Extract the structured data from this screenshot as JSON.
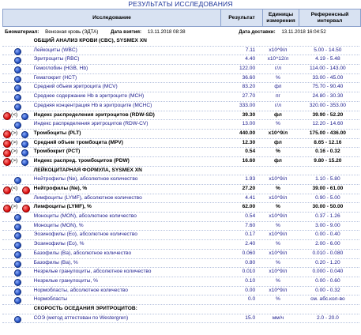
{
  "page_title": "РЕЗУЛЬТАТЫ ИССЛЕДОВАНИЯ",
  "columns": {
    "test": "Исследование",
    "result": "Результат",
    "unit": "Единицы измерения",
    "ref": "Референсный интервал"
  },
  "biomaterial": {
    "label": "Биоматериал:",
    "value": "Венозная кровь (ЭДТА)",
    "taken_label": "Дата взятия:",
    "taken_value": "13.11.2018 08:38",
    "delivered_label": "Дата доставки:",
    "delivered_value": "13.11.2018 16:04:52"
  },
  "rows": [
    {
      "name": "ОБЩИЙ АНАЛИЗ КРОВИ (CBC), SYSMEX XN",
      "value": "",
      "unit": "",
      "ref": "",
      "type": "header",
      "icon": "none",
      "flag": ""
    },
    {
      "name": "Лейкоциты (WBC)",
      "value": "7.11",
      "unit": "x10^9/л",
      "ref": "5.00 - 14.50",
      "type": "normal",
      "icon": "blue",
      "flag": ""
    },
    {
      "name": "Эритроциты (RBC)",
      "value": "4.40",
      "unit": "x10^12/л",
      "ref": "4.19 - 5.48",
      "type": "normal",
      "icon": "blue",
      "flag": ""
    },
    {
      "name": "Гемоглобин (HGB, Hb)",
      "value": "122.00",
      "unit": "г/л",
      "ref": "114.00 - 143.00",
      "type": "normal",
      "icon": "blue",
      "flag": ""
    },
    {
      "name": "Гематокрит (HCT)",
      "value": "36.60",
      "unit": "%",
      "ref": "33.00 - 45.00",
      "type": "normal",
      "icon": "blue",
      "flag": ""
    },
    {
      "name": "Средний объем эритроцита (MCV)",
      "value": "83.20",
      "unit": "фл",
      "ref": "75.70 - 90.40",
      "type": "normal",
      "icon": "blue",
      "flag": ""
    },
    {
      "name": "Среднее содержание Hb в эритроците (MCH)",
      "value": "27.70",
      "unit": "пг",
      "ref": "24.80 - 30.30",
      "type": "normal",
      "icon": "blue",
      "flag": ""
    },
    {
      "name": "Средняя концентрация Hb в эритроците (MCHC)",
      "value": "333.00",
      "unit": "г/л",
      "ref": "320.00 - 353.00",
      "type": "normal",
      "icon": "blue",
      "flag": ""
    },
    {
      "name": "Индекс распределения эритроцитов (RDW-SD)",
      "value": "39.30",
      "unit": "фл",
      "ref": "39.90 - 52.20",
      "type": "bold",
      "icon": "red",
      "flag": "(<)"
    },
    {
      "name": "Индекс распределения эритроцитов (RDW-CV)",
      "value": "13.00",
      "unit": "%",
      "ref": "12.20 - 14.60",
      "type": "normal",
      "icon": "blue",
      "flag": ""
    },
    {
      "name": "Тромбоциты (PLT)",
      "value": "440.00",
      "unit": "x10^9/л",
      "ref": "175.00 - 436.00",
      "type": "bold",
      "icon": "red",
      "flag": "(>)"
    },
    {
      "name": "Средний объем тромбоцита (MPV)",
      "value": "12.30",
      "unit": "фл",
      "ref": "8.65 - 12.16",
      "type": "bold",
      "icon": "red",
      "flag": "(>)"
    },
    {
      "name": "Тромбокрит (PCT)",
      "value": "0.54",
      "unit": "%",
      "ref": "0.16 - 0.32",
      "type": "bold",
      "icon": "red",
      "flag": "(>)"
    },
    {
      "name": "Индекс распред. тромбоцитов (PDW)",
      "value": "16.60",
      "unit": "фл",
      "ref": "9.80 - 15.20",
      "type": "bold",
      "icon": "red",
      "flag": "(>)"
    },
    {
      "name": "ЛЕЙКОЦИТАРНАЯ ФОРМУЛА, SYSMEX XN",
      "value": "",
      "unit": "",
      "ref": "",
      "type": "header",
      "icon": "none",
      "flag": ""
    },
    {
      "name": "Нейтрофилы (Ne), абсолютное количество",
      "value": "1.93",
      "unit": "x10^9/л",
      "ref": "1.10 - 5.80",
      "type": "normal",
      "icon": "blue",
      "flag": ""
    },
    {
      "name": "Нейтрофилы (Ne), %",
      "value": "27.20",
      "unit": "%",
      "ref": "39.00 - 61.00",
      "type": "bold",
      "icon": "red2",
      "flag": "(<)"
    },
    {
      "name": "Лимфоциты (LYMF), абсолютное количество",
      "value": "4.41",
      "unit": "x10^9/л",
      "ref": "0.90 - 5.00",
      "type": "normal",
      "icon": "blue",
      "flag": ""
    },
    {
      "name": "Лимфоциты (LYMF), %",
      "value": "62.00",
      "unit": "%",
      "ref": "30.00 - 50.00",
      "type": "bold",
      "icon": "red2",
      "flag": "(>)"
    },
    {
      "name": "Моноциты (MON), абсолютное количество",
      "value": "0.54",
      "unit": "x10^9/л",
      "ref": "0.37 - 1.26",
      "type": "normal",
      "icon": "blue",
      "flag": ""
    },
    {
      "name": "Моноциты (MON), %",
      "value": "7.60",
      "unit": "%",
      "ref": "3.00 - 9.00",
      "type": "normal",
      "icon": "blue",
      "flag": ""
    },
    {
      "name": "Эозинофилы (Eo), абсолютное количество",
      "value": "0.17",
      "unit": "x10^9/л",
      "ref": "0.00 - 0.40",
      "type": "normal",
      "icon": "blue",
      "flag": ""
    },
    {
      "name": "Эозинофилы (Eo), %",
      "value": "2.40",
      "unit": "%",
      "ref": "2.00 - 6.00",
      "type": "normal",
      "icon": "blue",
      "flag": ""
    },
    {
      "name": "Базофилы (Ba), абсолютное количество",
      "value": "0.060",
      "unit": "x10^9/л",
      "ref": "0.010 - 0.080",
      "type": "normal",
      "icon": "blue",
      "flag": ""
    },
    {
      "name": "Базофилы (Ba), %",
      "value": "0.80",
      "unit": "%",
      "ref": "0.20 - 1.20",
      "type": "normal",
      "icon": "blue",
      "flag": ""
    },
    {
      "name": "Незрелые гранулоциты, абсолютное количество",
      "value": "0.010",
      "unit": "x10^9/л",
      "ref": "0.000 - 0.040",
      "type": "normal",
      "icon": "blue",
      "flag": ""
    },
    {
      "name": "Незрелые гранулоциты, %",
      "value": "0.10",
      "unit": "%",
      "ref": "0.00 - 0.60",
      "type": "normal",
      "icon": "blue",
      "flag": ""
    },
    {
      "name": "Нормобласты, абсолютное количество",
      "value": "0.00",
      "unit": "x10^9/л",
      "ref": "0.00 - 0.32",
      "type": "normal",
      "icon": "blue",
      "flag": ""
    },
    {
      "name": "Нормобласты",
      "value": "0.0",
      "unit": "%",
      "ref": "см. абс.кол-во",
      "type": "normal",
      "icon": "blue",
      "flag": ""
    },
    {
      "name": "СКОРОСТЬ ОСЕДАНИЯ ЭРИТРОЦИТОВ:",
      "value": "",
      "unit": "",
      "ref": "",
      "type": "header",
      "icon": "none",
      "flag": ""
    },
    {
      "name": "СОЭ (метод аттестован по Westergren)",
      "value": "15.0",
      "unit": "мм/ч",
      "ref": "2.0 - 20.0",
      "type": "normal",
      "icon": "blue",
      "flag": ""
    }
  ]
}
